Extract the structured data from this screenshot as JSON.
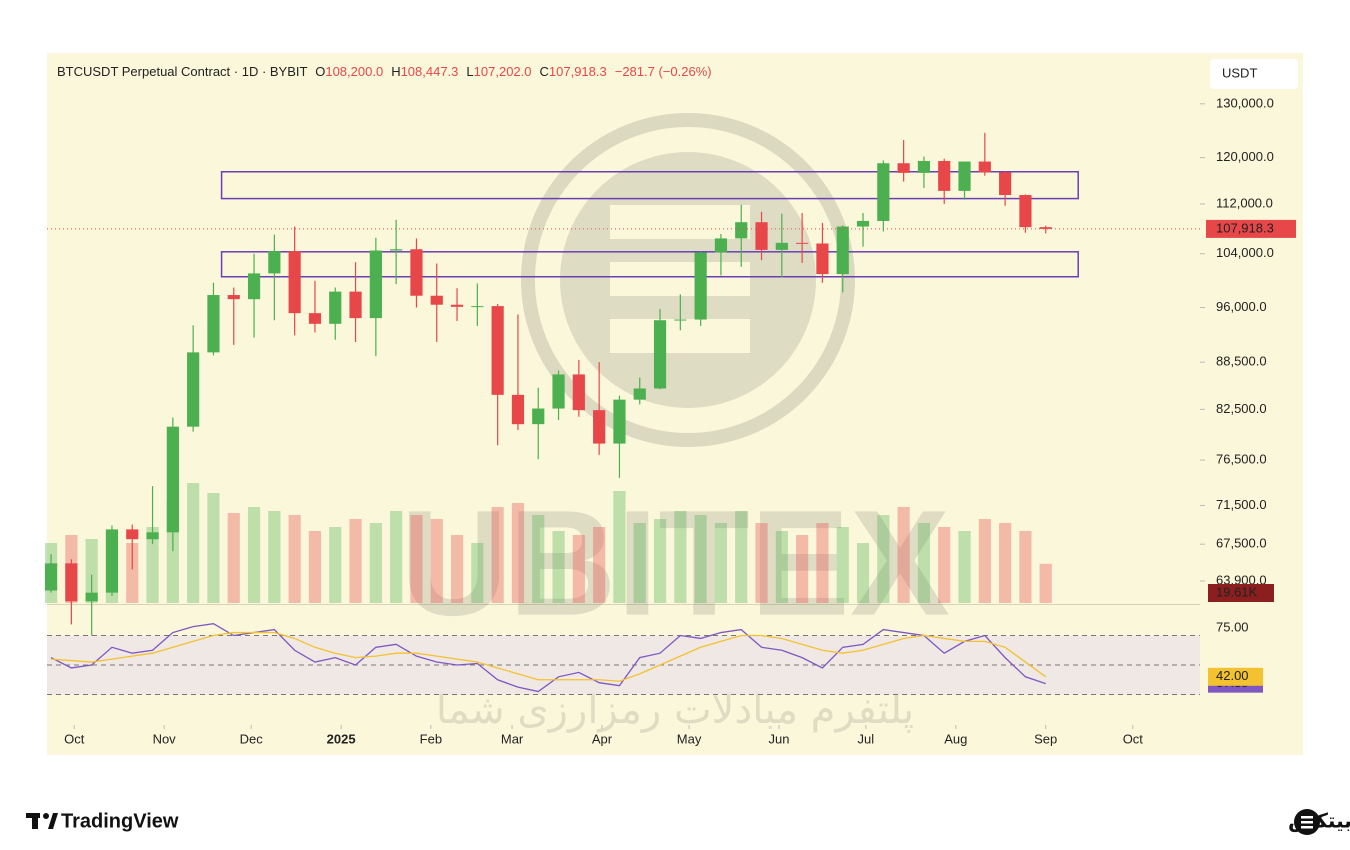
{
  "chart_data": {
    "type": "candlestick",
    "header": {
      "title": "BTCUSDT Perpetual Contract · 1D · BYBIT",
      "fields": [
        {
          "label": "O",
          "value": "108,200.0"
        },
        {
          "label": "H",
          "value": "108,447.3"
        },
        {
          "label": "L",
          "value": "107,202.0"
        },
        {
          "label": "C",
          "value": "107,918.3"
        }
      ],
      "change": "−281.7 (−0.26%)"
    },
    "currency": "USDT",
    "up_color": "#4caf50",
    "down_color": "#e8474a",
    "open": [
      63000,
      65600,
      62000,
      62800,
      69000,
      68000,
      68700,
      80400,
      89800,
      97800,
      97200,
      101000,
      104400,
      95200,
      93700,
      98300,
      94500,
      104500,
      104700,
      97700,
      96400,
      96100,
      96200,
      84300,
      80700,
      82600,
      86900,
      82400,
      78400,
      83700,
      85100,
      94200,
      94300,
      104200,
      106400,
      109000,
      104600,
      105700,
      105600,
      100900,
      108300,
      109200,
      119000,
      117300,
      119400,
      114200,
      119300,
      117400,
      113500,
      108200
    ],
    "high": [
      66500,
      66000,
      64500,
      69400,
      69500,
      73600,
      81500,
      93500,
      99600,
      98900,
      104000,
      107000,
      108300,
      99900,
      98900,
      102700,
      106500,
      109400,
      106400,
      102500,
      98800,
      99500,
      96500,
      95000,
      85200,
      87400,
      88800,
      88500,
      84200,
      86500,
      95800,
      97900,
      104300,
      107100,
      111900,
      110700,
      110400,
      110500,
      108900,
      108500,
      110500,
      119500,
      123200,
      120200,
      119800,
      119300,
      124500,
      117600,
      113600,
      108447.3
    ],
    "low": [
      62800,
      59900,
      58900,
      62500,
      65000,
      67500,
      66800,
      79800,
      89400,
      90800,
      91800,
      94200,
      92100,
      92500,
      91500,
      91200,
      89300,
      99400,
      96000,
      91200,
      94100,
      93400,
      78200,
      80000,
      76600,
      81200,
      81600,
      77100,
      74500,
      83100,
      85000,
      92800,
      93400,
      100700,
      102000,
      103000,
      100400,
      102600,
      99600,
      98200,
      105100,
      107500,
      115800,
      114700,
      112000,
      112700,
      116800,
      111700,
      107300,
      107202
    ],
    "close": [
      65600,
      62000,
      62800,
      69000,
      68000,
      68700,
      80400,
      89800,
      97800,
      97200,
      101000,
      104400,
      95200,
      93700,
      98300,
      94500,
      104500,
      104700,
      97700,
      96400,
      96100,
      96200,
      84300,
      80700,
      82600,
      86900,
      82400,
      78400,
      83700,
      85100,
      94200,
      94300,
      104200,
      106400,
      109000,
      104600,
      105700,
      105600,
      100900,
      108300,
      109200,
      119000,
      117300,
      119400,
      114200,
      119300,
      117400,
      113500,
      108200,
      107918.3
    ],
    "log_scale": true,
    "xlim": [
      -0.2,
      56.6
    ],
    "xticks": [
      {
        "value": 1.14,
        "label": "Oct"
      },
      {
        "value": 5.57,
        "label": "Nov"
      },
      {
        "value": 9.86,
        "label": "Dec"
      },
      {
        "value": 14.29,
        "label": "2025",
        "emphasis": true
      },
      {
        "value": 18.71,
        "label": "Feb"
      },
      {
        "value": 22.71,
        "label": "Mar"
      },
      {
        "value": 27.14,
        "label": "Apr"
      },
      {
        "value": 31.43,
        "label": "May"
      },
      {
        "value": 35.86,
        "label": "Jun"
      },
      {
        "value": 40.14,
        "label": "Jul"
      },
      {
        "value": 44.57,
        "label": "Aug"
      },
      {
        "value": 49,
        "label": "Sep"
      },
      {
        "value": 53.29,
        "label": "Oct"
      }
    ],
    "ylim": [
      61840,
      139800
    ],
    "yticks": [
      {
        "value": 130000,
        "label": "130,000.0"
      },
      {
        "value": 120000,
        "label": "120,000.0"
      },
      {
        "value": 112000,
        "label": "112,000.0"
      },
      {
        "value": 104000,
        "label": "104,000.0"
      },
      {
        "value": 96000,
        "label": "96,000.0"
      },
      {
        "value": 88500,
        "label": "88,500.0"
      },
      {
        "value": 82500,
        "label": "82,500.0"
      },
      {
        "value": 76500,
        "label": "76,500.0"
      },
      {
        "value": 71500,
        "label": "71,500.0"
      },
      {
        "value": 67500,
        "label": "67,500.0"
      },
      {
        "value": 63900,
        "label": "63,900.0"
      }
    ],
    "last_price": {
      "value": 107918.3,
      "label": "107,918.3"
    },
    "zones": [
      {
        "x": [
          8.4,
          50.6
        ],
        "y": [
          112900,
          117500
        ]
      },
      {
        "x": [
          8.4,
          50.6
        ],
        "y": [
          100500,
          104300
        ]
      }
    ],
    "zone_color": "#6a3fb5",
    "volume": {
      "values": [
        30000,
        34000,
        32000,
        36000,
        30000,
        38000,
        52000,
        60000,
        55000,
        45000,
        48000,
        46000,
        44000,
        36000,
        38000,
        42000,
        40000,
        46000,
        44000,
        42000,
        34000,
        30000,
        48000,
        50000,
        44000,
        36000,
        34000,
        38000,
        56000,
        40000,
        42000,
        46000,
        44000,
        40000,
        46000,
        40000,
        36000,
        34000,
        40000,
        38000,
        30000,
        44000,
        48000,
        40000,
        38000,
        36000,
        42000,
        40000,
        36000,
        19610
      ],
      "last": {
        "value": 19610,
        "label": "19.61K"
      }
    },
    "rsi": {
      "ylim": [
        10,
        90
      ],
      "bands": [
        70,
        50,
        30
      ],
      "yticks": [
        {
          "value": 75,
          "label": "75.00"
        }
      ],
      "series": [
        {
          "name": "RSI",
          "color": "#7e57c2",
          "values": [
            55,
            48,
            50,
            62,
            58,
            60,
            72,
            76,
            78,
            70,
            72,
            74,
            60,
            52,
            55,
            50,
            62,
            64,
            56,
            52,
            50,
            51,
            40,
            35,
            32,
            42,
            45,
            38,
            36,
            55,
            58,
            70,
            68,
            72,
            74,
            62,
            60,
            55,
            48,
            62,
            64,
            74,
            72,
            70,
            58,
            66,
            70,
            55,
            42,
            37.35
          ],
          "last_label": "37.35"
        },
        {
          "name": "RSI MA",
          "color": "#f2c230",
          "values": [
            54,
            53,
            52,
            54,
            56,
            58,
            62,
            66,
            70,
            72,
            72,
            72,
            68,
            62,
            58,
            55,
            56,
            58,
            58,
            56,
            54,
            52,
            48,
            44,
            40,
            40,
            40,
            40,
            39,
            44,
            50,
            56,
            62,
            66,
            70,
            70,
            68,
            64,
            60,
            58,
            60,
            64,
            68,
            70,
            68,
            66,
            66,
            62,
            52,
            42
          ],
          "last_label": "42.00"
        }
      ]
    }
  },
  "watermark": {
    "brand": "UBITEX",
    "tagline": "پلتفرم مبادلات رمزارزی شما"
  },
  "footer": {
    "left": "TradingView",
    "right": "یوبیتکس"
  }
}
